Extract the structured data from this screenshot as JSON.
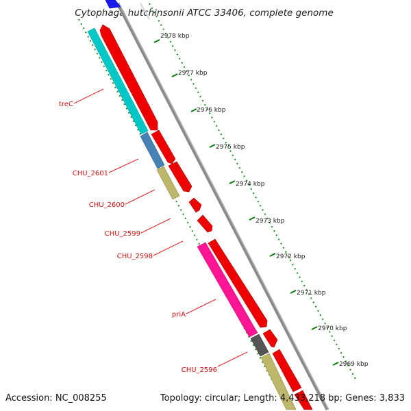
{
  "title": "Cytophaga hutchinsonii ATCC 33406, complete genome",
  "footer": {
    "accession": "Accession: NC_008255",
    "summary": "Topology: circular; Length: 4,433,218 bp; Genes: 3,833"
  },
  "colors": {
    "backbone": "#8c8c8c",
    "tick_major": "#0a7a0a",
    "label_line": "#dd2222",
    "gene_red": "#ee0000",
    "gene_cyan": "#00c8c8",
    "gene_steel": "#4682b4",
    "gene_khaki": "#bdb76b",
    "gene_magenta": "#ff1493",
    "gene_gray": "#5a5a5a",
    "gene_blue": "#1a1aee"
  },
  "scale_ticks": [
    {
      "label": "2978 kbp"
    },
    {
      "label": "2977 kbp"
    },
    {
      "label": "2976 kbp"
    },
    {
      "label": "2975 kbp"
    },
    {
      "label": "2974 kbp"
    },
    {
      "label": "2973 kbp"
    },
    {
      "label": "2972 kbp"
    },
    {
      "label": "2971 kbp"
    },
    {
      "label": "2970 kbp"
    },
    {
      "label": "2969 kbp"
    }
  ],
  "gene_labels": [
    {
      "label": "treC"
    },
    {
      "label": "CHU_2601"
    },
    {
      "label": "CHU_2600"
    },
    {
      "label": "CHU_2599"
    },
    {
      "label": "CHU_2598"
    },
    {
      "label": "priA"
    },
    {
      "label": "CHU_2596"
    }
  ]
}
